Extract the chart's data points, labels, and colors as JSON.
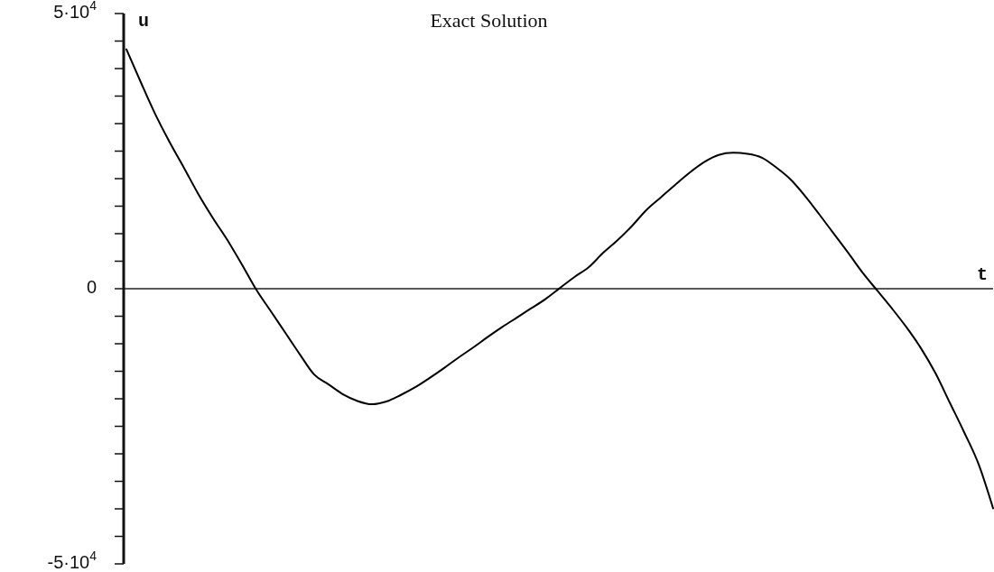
{
  "chart_data": {
    "type": "line",
    "title": "Exact Solution",
    "xlabel": "t",
    "ylabel": "u",
    "categories": [
      null,
      null,
      null,
      null,
      null,
      null,
      null,
      null,
      null,
      null,
      null,
      null,
      null,
      null,
      null,
      null,
      null,
      null,
      null,
      null,
      null,
      null,
      null,
      null,
      null,
      null,
      null,
      null,
      null,
      null,
      null,
      null,
      null,
      null,
      null,
      null,
      null,
      null,
      null,
      null,
      null,
      null,
      null,
      null,
      null,
      null,
      null,
      null,
      null,
      null,
      null,
      null,
      null,
      null,
      null,
      null,
      null,
      null,
      null,
      null,
      null
    ],
    "values": [
      43500,
      37500,
      31700,
      26600,
      21900,
      17100,
      12800,
      8800,
      4400,
      -200,
      -4100,
      -8000,
      -11900,
      -15600,
      -17400,
      -19200,
      -20400,
      -21000,
      -20500,
      -19300,
      -17900,
      -16200,
      -14400,
      -12500,
      -10700,
      -8800,
      -7000,
      -5300,
      -3600,
      -1900,
      100,
      2100,
      3900,
      6500,
      8800,
      11400,
      14300,
      16600,
      18900,
      21100,
      23000,
      24300,
      24700,
      24500,
      23800,
      22000,
      19800,
      16800,
      13400,
      9900,
      6400,
      2800,
      -400,
      -3600,
      -7000,
      -10800,
      -15300,
      -20700,
      -26100,
      -31900,
      -39900
    ],
    "color": "#000000",
    "ylim": [
      -50000,
      50000
    ],
    "yticks": [
      {
        "value": -50000,
        "label": "-5·10$^{4}$"
      },
      {
        "value": -45000,
        "label": null
      },
      {
        "value": -40000,
        "label": null
      },
      {
        "value": -35000,
        "label": null
      },
      {
        "value": -30000,
        "label": null
      },
      {
        "value": -25000,
        "label": null
      },
      {
        "value": -20000,
        "label": null
      },
      {
        "value": -15000,
        "label": null
      },
      {
        "value": -10000,
        "label": null
      },
      {
        "value": -5000,
        "label": null
      },
      0,
      {
        "value": 5000,
        "label": null
      },
      {
        "value": 10000,
        "label": null
      },
      {
        "value": 15000,
        "label": null
      },
      {
        "value": 20000,
        "label": null
      },
      {
        "value": 25000,
        "label": null
      },
      {
        "value": 30000,
        "label": null
      },
      {
        "value": 35000,
        "label": null
      },
      {
        "value": 40000,
        "label": null
      },
      {
        "value": 45000,
        "label": null
      },
      {
        "value": 50000,
        "label": "5·10$^{4}$"
      }
    ],
    "tick_labels": "y"
  }
}
